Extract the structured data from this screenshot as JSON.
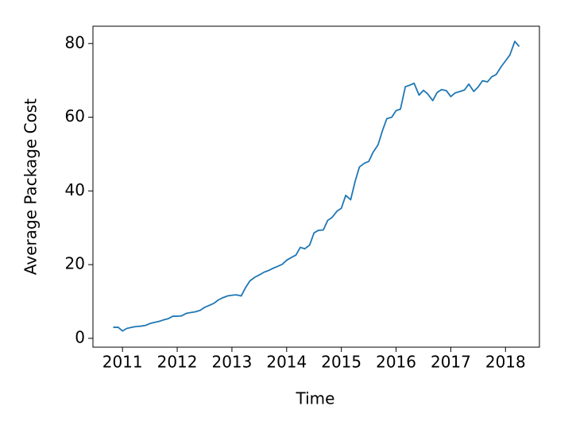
{
  "chart_data": {
    "type": "line",
    "xlabel": "Time",
    "ylabel": "Average Package Cost",
    "xlim": [
      2010.46,
      2018.62
    ],
    "xticks": [
      2011,
      2012,
      2013,
      2014,
      2015,
      2016,
      2017,
      2018
    ],
    "ylim": [
      -2.4,
      84.7
    ],
    "yticks": [
      0,
      20,
      40,
      60,
      80
    ],
    "grid": false,
    "series": [
      {
        "color": "#1f77b4",
        "x": [
          2010.83,
          2010.92,
          2011.0,
          2011.08,
          2011.17,
          2011.25,
          2011.33,
          2011.42,
          2011.5,
          2011.58,
          2011.67,
          2011.75,
          2011.83,
          2011.92,
          2012.0,
          2012.08,
          2012.17,
          2012.25,
          2012.33,
          2012.42,
          2012.5,
          2012.58,
          2012.67,
          2012.75,
          2012.83,
          2012.92,
          2013.0,
          2013.08,
          2013.17,
          2013.25,
          2013.33,
          2013.42,
          2013.5,
          2013.58,
          2013.67,
          2013.75,
          2013.83,
          2013.92,
          2014.0,
          2014.08,
          2014.17,
          2014.25,
          2014.33,
          2014.42,
          2014.5,
          2014.58,
          2014.67,
          2014.75,
          2014.83,
          2014.92,
          2015.0,
          2015.08,
          2015.17,
          2015.25,
          2015.33,
          2015.42,
          2015.5,
          2015.58,
          2015.67,
          2015.75,
          2015.83,
          2015.92,
          2016.0,
          2016.08,
          2016.17,
          2016.25,
          2016.33,
          2016.42,
          2016.5,
          2016.58,
          2016.67,
          2016.75,
          2016.83,
          2016.92,
          2017.0,
          2017.08,
          2017.17,
          2017.25,
          2017.33,
          2017.42,
          2017.5,
          2017.58,
          2017.67,
          2017.75,
          2017.83,
          2017.92,
          2018.0,
          2018.08,
          2018.17,
          2018.25
        ],
        "values": [
          3.0,
          3.0,
          2.0,
          2.7,
          3.0,
          3.2,
          3.3,
          3.5,
          4.0,
          4.3,
          4.6,
          5.0,
          5.3,
          6.0,
          6.0,
          6.1,
          6.8,
          7.0,
          7.2,
          7.6,
          8.4,
          8.9,
          9.5,
          10.4,
          11.0,
          11.5,
          11.7,
          11.8,
          11.5,
          13.8,
          15.6,
          16.6,
          17.2,
          17.9,
          18.4,
          19.0,
          19.5,
          20.1,
          21.2,
          21.9,
          22.6,
          24.7,
          24.3,
          25.3,
          28.6,
          29.3,
          29.4,
          32.0,
          32.8,
          34.5,
          35.3,
          38.8,
          37.6,
          42.5,
          46.5,
          47.5,
          48.0,
          50.5,
          52.5,
          56.3,
          59.6,
          60.0,
          61.8,
          62.2,
          68.3,
          68.7,
          69.2,
          66.0,
          67.3,
          66.3,
          64.5,
          66.7,
          67.5,
          67.2,
          65.6,
          66.6,
          67.0,
          67.4,
          69.0,
          67.0,
          68.2,
          69.9,
          69.6,
          71.0,
          71.6,
          73.7,
          75.3,
          76.9,
          80.6,
          79.2
        ]
      }
    ]
  }
}
